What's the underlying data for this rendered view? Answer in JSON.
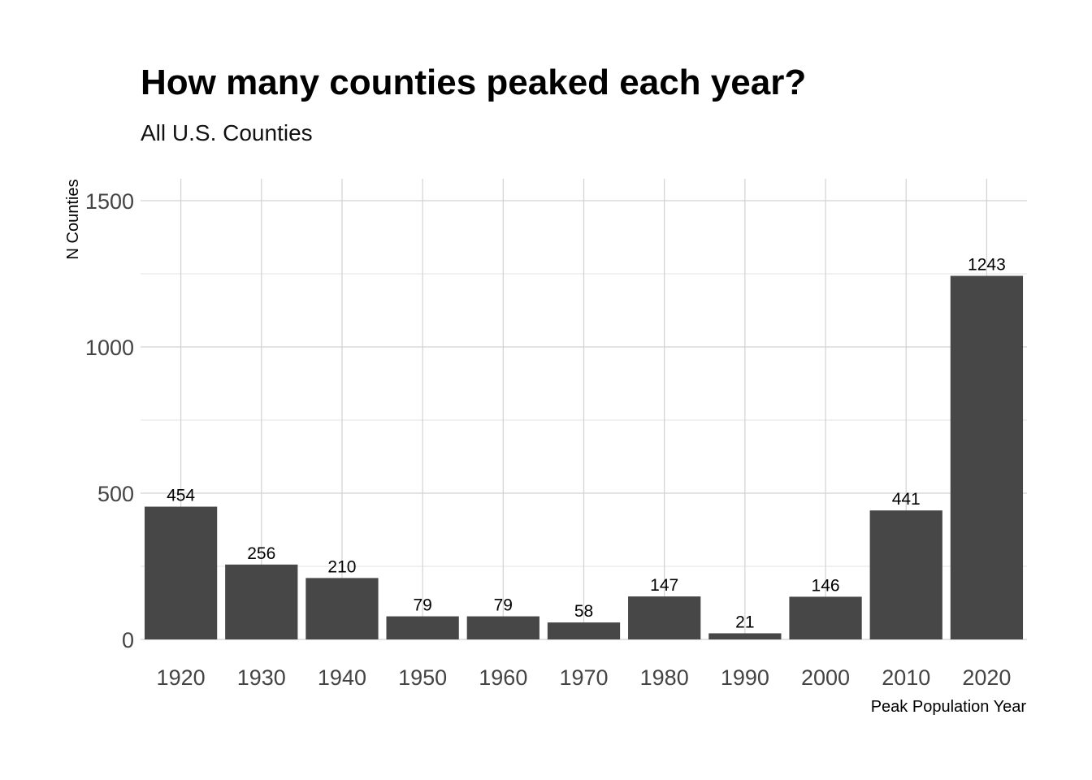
{
  "chart_data": {
    "type": "bar",
    "title": "How many counties peaked each year?",
    "subtitle": "All U.S. Counties",
    "xlabel": "Peak Population Year",
    "ylabel": "N Counties",
    "categories": [
      "1920",
      "1930",
      "1940",
      "1950",
      "1960",
      "1970",
      "1980",
      "1990",
      "2000",
      "2010",
      "2020"
    ],
    "values": [
      454,
      256,
      210,
      79,
      79,
      58,
      147,
      21,
      146,
      441,
      1243
    ],
    "data_labels": [
      "454",
      "256",
      "210",
      "79",
      "79",
      "58",
      "147",
      "21",
      "146",
      "441",
      "1243"
    ],
    "y_ticks": [
      0,
      500,
      1000,
      1500
    ],
    "y_tick_labels": [
      "0",
      "500",
      "1000",
      "1500"
    ],
    "ylim": [
      0,
      1575
    ],
    "grid": true,
    "legend": "none",
    "bar_color": "#474747"
  }
}
